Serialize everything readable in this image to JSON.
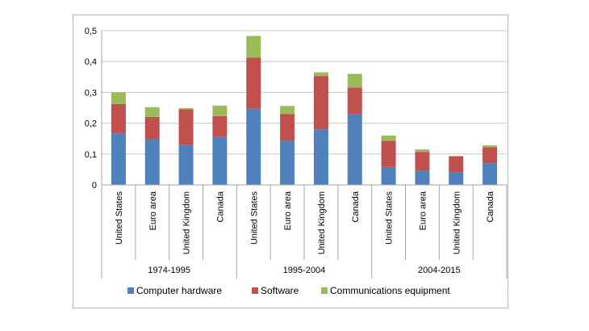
{
  "chart_data": {
    "type": "bar",
    "stacked": true,
    "categories": [
      "United States",
      "Euro area",
      "United Kingdom",
      "Canada",
      "United States",
      "Euro area",
      "United Kingdom",
      "Canada",
      "United States",
      "Euro area",
      "United Kingdom",
      "Canada"
    ],
    "groups": [
      {
        "label": "1974-1995"
      },
      {
        "label": "1995-2004"
      },
      {
        "label": "2004-2015"
      }
    ],
    "series": [
      {
        "name": "Computer hardware",
        "color": "#4f81bd",
        "values": [
          0.168,
          0.148,
          0.13,
          0.155,
          0.247,
          0.143,
          0.18,
          0.23,
          0.058,
          0.045,
          0.04,
          0.07
        ]
      },
      {
        "name": "Software",
        "color": "#c0504d",
        "values": [
          0.094,
          0.072,
          0.115,
          0.068,
          0.166,
          0.087,
          0.173,
          0.086,
          0.085,
          0.062,
          0.052,
          0.052
        ]
      },
      {
        "name": "Communications equipment",
        "color": "#9bbb59",
        "values": [
          0.038,
          0.032,
          0.004,
          0.034,
          0.07,
          0.026,
          0.012,
          0.044,
          0.017,
          0.008,
          0.002,
          0.006
        ]
      }
    ],
    "yticks": [
      "0",
      "0,1",
      "0,2",
      "0,3",
      "0,4",
      "0,5"
    ],
    "ylim": [
      0,
      0.5
    ],
    "grid": true,
    "legend_position": "bottom",
    "title": "",
    "xlabel": "",
    "ylabel": ""
  }
}
